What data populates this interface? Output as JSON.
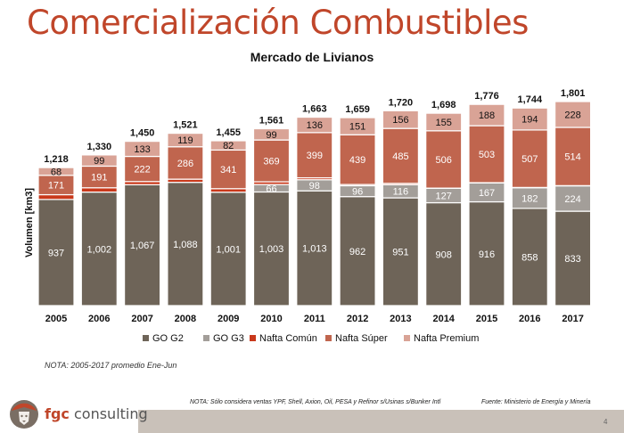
{
  "page": {
    "title": "Comercialización Combustibles",
    "note_period": "NOTA: 2005-2017 promedio Ene-Jun",
    "note_sources": "NOTA: Sólo considera ventas YPF, Shell, Axion, Oil, PESA y Refinor s/Usinas s/Bunker Intl",
    "source": "Fuente: Ministerio de Energía y Minería",
    "page_number": "4",
    "brand": {
      "prefix": "fgc",
      "suffix": " consulting"
    }
  },
  "chart_data": {
    "type": "bar",
    "stacked": true,
    "title": "Mercado de Livianos",
    "xlabel": "",
    "ylabel": "Volumen [km3]",
    "ylim": [
      0,
      1900
    ],
    "grid": false,
    "legend_position": "bottom",
    "categories": [
      "2005",
      "2006",
      "2007",
      "2008",
      "2009",
      "2010",
      "2011",
      "2012",
      "2013",
      "2014",
      "2015",
      "2016",
      "2017"
    ],
    "series": [
      {
        "name": "GO G2",
        "color": "#6e6458",
        "label_color": "#ffffff",
        "show_labels": true,
        "values": [
          937,
          1002,
          1067,
          1088,
          1001,
          1003,
          1013,
          962,
          951,
          908,
          916,
          858,
          833
        ]
      },
      {
        "name": "GO G3",
        "color": "#a39e99",
        "label_color": "#ffffff",
        "show_labels": true,
        "values": [
          0,
          0,
          0,
          0,
          0,
          66,
          98,
          96,
          116,
          127,
          167,
          182,
          224
        ]
      },
      {
        "name": "Nafta Común",
        "color": "#c9391b",
        "label_color": "#ffffff",
        "show_labels": false,
        "values": [
          42,
          38,
          28,
          28,
          31,
          24,
          17,
          11,
          12,
          2,
          2,
          3,
          2
        ]
      },
      {
        "name": "Nafta Súper",
        "color": "#c0654e",
        "label_color": "#ffffff",
        "show_labels": true,
        "values": [
          171,
          191,
          222,
          286,
          341,
          369,
          399,
          439,
          485,
          506,
          503,
          507,
          514
        ]
      },
      {
        "name": "Nafta Premium",
        "color": "#d9a396",
        "label_color": "#111111",
        "show_labels": true,
        "values": [
          68,
          99,
          133,
          119,
          82,
          99,
          136,
          151,
          156,
          155,
          188,
          194,
          228
        ]
      }
    ],
    "totals": [
      1218,
      1330,
      1450,
      1521,
      1455,
      1561,
      1663,
      1659,
      1720,
      1698,
      1776,
      1744,
      1801
    ]
  }
}
